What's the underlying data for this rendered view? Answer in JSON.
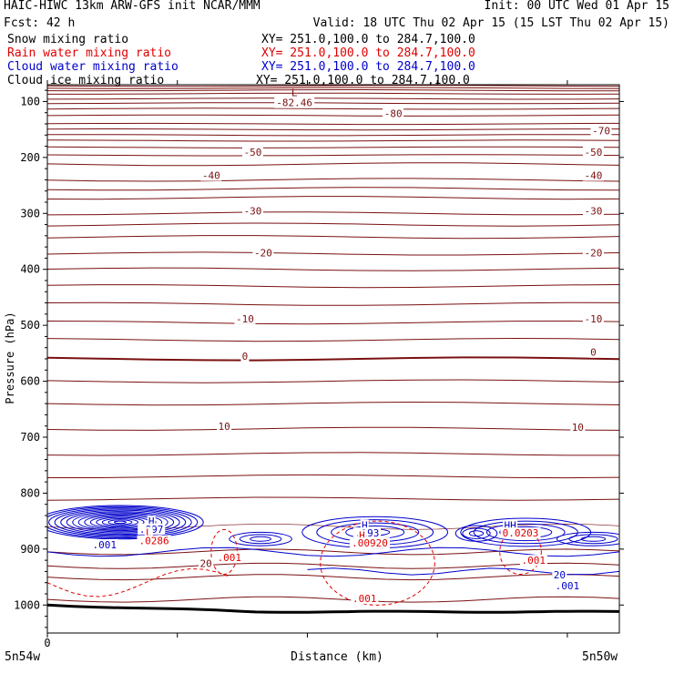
{
  "header": {
    "title": "HAIC-HIWC 13km ARW-GFS init   NCAR/MMM",
    "init": "Init: 00 UTC Wed 01 Apr 15",
    "fcst": "Fcst:   42 h",
    "valid": "Valid: 18 UTC Thu 02 Apr 15 (15 LST Thu 02 Apr 15)",
    "fields": [
      {
        "label": "Snow mixing ratio",
        "xy": "XY= 251.0,100.0 to 284.7,100.0",
        "color": "#000000"
      },
      {
        "label": "Rain water mixing ratio",
        "xy": "XY= 251.0,100.0 to 284.7,100.0",
        "color": "#e00000"
      },
      {
        "label": "Cloud water mixing ratio",
        "xy": "XY= 251.0,100.0 to 284.7,100.0",
        "color": "#0000cc"
      },
      {
        "label": "Cloud ice mixing ratio",
        "xy": "XY= 251.0,100.0 to 284.7,100.0",
        "color": "#000000"
      }
    ]
  },
  "chart_data": {
    "type": "cross-section",
    "ylabel": "Pressure (hPa)",
    "xlabel": "Distance (km)",
    "yticks": [
      100,
      200,
      300,
      400,
      500,
      600,
      700,
      800,
      900,
      1000
    ],
    "ylim": [
      1050,
      70
    ],
    "xlim": [
      0,
      220
    ],
    "xtick_values": [
      0,
      50,
      100,
      150,
      200
    ],
    "xtick_label": "0",
    "left_label": "5n54w",
    "right_label": "5n50w",
    "temperature_labels": [
      {
        "text": "-82.46",
        "x": 95,
        "p": 107
      },
      {
        "text": "-80",
        "x": 133,
        "p": 126
      },
      {
        "text": "-70",
        "x": 213,
        "p": 157
      },
      {
        "text": "-50",
        "x": 79,
        "p": 195
      },
      {
        "text": "-50",
        "x": 210,
        "p": 195
      },
      {
        "text": "-40",
        "x": 63,
        "p": 237
      },
      {
        "text": "-40",
        "x": 210,
        "p": 237
      },
      {
        "text": "-30",
        "x": 79,
        "p": 300
      },
      {
        "text": "-30",
        "x": 210,
        "p": 300
      },
      {
        "text": "-20",
        "x": 83,
        "p": 375
      },
      {
        "text": "-20",
        "x": 210,
        "p": 375
      },
      {
        "text": "-10",
        "x": 76,
        "p": 493
      },
      {
        "text": "-10",
        "x": 210,
        "p": 493
      },
      {
        "text": "0",
        "x": 76,
        "p": 560
      },
      {
        "text": "0",
        "x": 210,
        "p": 553
      },
      {
        "text": "10",
        "x": 68,
        "p": 685
      },
      {
        "text": "10",
        "x": 204,
        "p": 687
      },
      {
        "text": "20",
        "x": 61,
        "p": 930
      }
    ],
    "cloud_water_labels": [
      {
        "text": "H",
        "x": 40,
        "p": 855
      },
      {
        "text": ".897",
        "x": 40,
        "p": 869
      },
      {
        "text": "H",
        "x": 122,
        "p": 862
      },
      {
        "text": ".193",
        "x": 123,
        "p": 876
      },
      {
        "text": "HH",
        "x": 178,
        "p": 862
      },
      {
        "text": ".001",
        "x": 22,
        "p": 897
      },
      {
        "text": "20",
        "x": 197,
        "p": 951
      },
      {
        "text": ".001",
        "x": 200,
        "p": 970
      }
    ],
    "rain_labels": [
      {
        "text": "L",
        "x": 39,
        "p": 875
      },
      {
        "text": ".0286",
        "x": 41,
        "p": 890
      },
      {
        "text": "H",
        "x": 121,
        "p": 880
      },
      {
        "text": ".00920",
        "x": 124,
        "p": 894
      },
      {
        "text": "0.0203",
        "x": 182,
        "p": 876
      },
      {
        "text": ".001",
        "x": 70,
        "p": 920
      },
      {
        "text": ".001",
        "x": 187,
        "p": 925
      },
      {
        "text": ".001",
        "x": 122,
        "p": 993
      }
    ],
    "low_marker": {
      "text": "L",
      "x": 95,
      "p": 90
    }
  }
}
